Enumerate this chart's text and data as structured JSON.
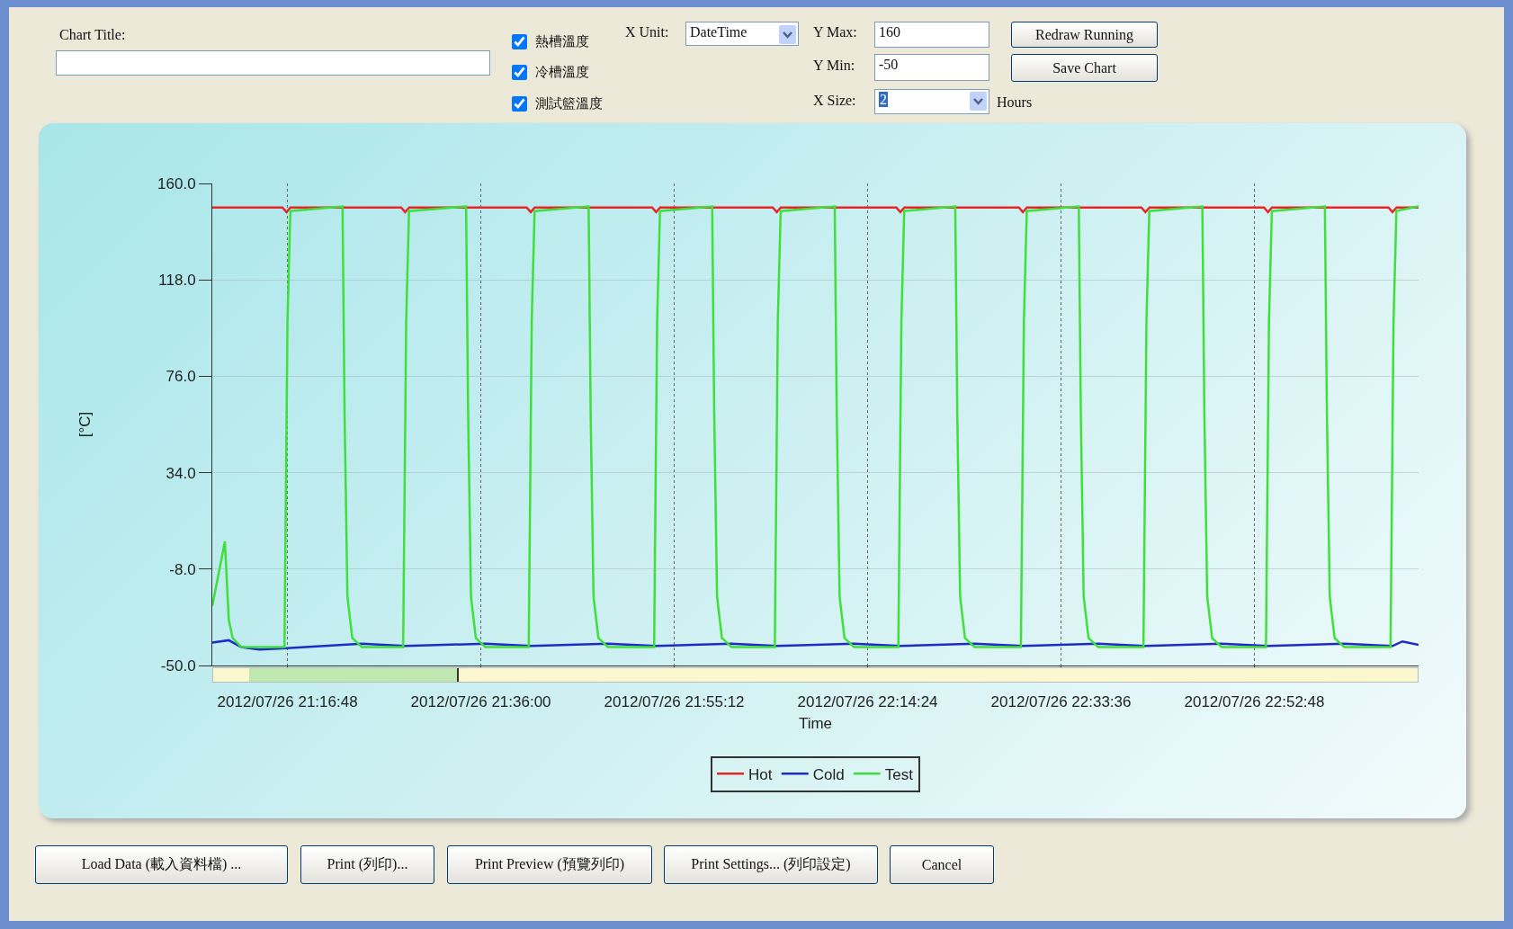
{
  "chart_data": {
    "type": "line",
    "xlabel": "Time",
    "ylabel": "[°C]",
    "legend": "bottom",
    "grid": true,
    "marker": "none",
    "line_style": "solid",
    "xlim": [
      "2012-07-26T21:09:20",
      "2012-07-26T23:09:06"
    ],
    "xticks": [
      {
        "value": "2012-07-26T21:16:48",
        "label": "2012/07/26 21:16:48"
      },
      {
        "value": "2012-07-26T21:36:00",
        "label": "2012/07/26 21:36:00"
      },
      {
        "value": "2012-07-26T21:55:12",
        "label": "2012/07/26 21:55:12"
      },
      {
        "value": "2012-07-26T22:14:24",
        "label": "2012/07/26 22:14:24"
      },
      {
        "value": "2012-07-26T22:33:36",
        "label": "2012/07/26 22:33:36"
      },
      {
        "value": "2012-07-26T22:52:48",
        "label": "2012/07/26 22:52:48"
      }
    ],
    "ylim": [
      -50,
      160
    ],
    "yticks": [
      {
        "value": 160,
        "label": "160.0"
      },
      {
        "value": 118,
        "label": "118.0"
      },
      {
        "value": 76,
        "label": "76.0"
      },
      {
        "value": 34,
        "label": "34.0"
      },
      {
        "value": -8,
        "label": "-8.0"
      },
      {
        "value": -50,
        "label": "-50.0"
      }
    ],
    "series": [
      {
        "name": "Hot",
        "color": "#e8262a",
        "x": [
          "2012-07-26T21:09:20",
          "2012-07-26T21:16:18",
          "2012-07-26T21:16:42",
          "2012-07-26T21:17:06",
          "2012-07-26T21:28:05",
          "2012-07-26T21:28:29",
          "2012-07-26T21:28:53",
          "2012-07-26T21:40:33",
          "2012-07-26T21:40:57",
          "2012-07-26T21:41:21",
          "2012-07-26T21:53:00",
          "2012-07-26T21:53:24",
          "2012-07-26T21:53:48",
          "2012-07-26T22:04:59",
          "2012-07-26T22:05:23",
          "2012-07-26T22:05:47",
          "2012-07-26T22:17:15",
          "2012-07-26T22:17:39",
          "2012-07-26T22:18:03",
          "2012-07-26T22:29:25",
          "2012-07-26T22:29:49",
          "2012-07-26T22:30:13",
          "2012-07-26T22:41:35",
          "2012-07-26T22:41:59",
          "2012-07-26T22:42:23",
          "2012-07-26T22:53:45",
          "2012-07-26T22:54:09",
          "2012-07-26T22:54:33",
          "2012-07-26T23:06:07",
          "2012-07-26T23:06:31",
          "2012-07-26T23:06:55",
          "2012-07-26T23:09:06"
        ],
        "values": [
          149.5,
          149.5,
          147.5,
          149.5,
          149.5,
          147.5,
          149.5,
          149.5,
          147.5,
          149.5,
          149.5,
          147.5,
          149.5,
          149.5,
          147.5,
          149.5,
          149.5,
          147.5,
          149.5,
          149.5,
          147.5,
          149.5,
          149.5,
          147.5,
          149.5,
          149.5,
          147.5,
          149.5,
          149.5,
          147.5,
          149.5,
          149.5
        ]
      },
      {
        "name": "Cold",
        "color": "#1d2bc8",
        "x": [
          "2012-07-26T21:09:20",
          "2012-07-26T21:10:58",
          "2012-07-26T21:12:13",
          "2012-07-26T21:14:00",
          "2012-07-26T21:16:42",
          "2012-07-26T21:24:11",
          "2012-07-26T21:28:29",
          "2012-07-26T21:36:27",
          "2012-07-26T21:40:57",
          "2012-07-26T21:48:37",
          "2012-07-26T21:53:24",
          "2012-07-26T22:00:53",
          "2012-07-26T22:05:23",
          "2012-07-26T22:13:03",
          "2012-07-26T22:17:39",
          "2012-07-26T22:25:01",
          "2012-07-26T22:29:49",
          "2012-07-26T22:37:17",
          "2012-07-26T22:41:59",
          "2012-07-26T22:49:33",
          "2012-07-26T22:54:09",
          "2012-07-26T23:01:43",
          "2012-07-26T23:06:31",
          "2012-07-26T23:07:30",
          "2012-07-26T23:09:06"
        ],
        "values": [
          -40,
          -39,
          -42,
          -43,
          -42.5,
          -40.5,
          -41.5,
          -40.5,
          -41.5,
          -40.5,
          -41.5,
          -40.5,
          -41.5,
          -40.5,
          -41.5,
          -40.5,
          -41.5,
          -40.5,
          -41.5,
          -40.5,
          -41.5,
          -40.5,
          -41.5,
          -39.5,
          -41
        ]
      },
      {
        "name": "Test",
        "color": "#3ee03a",
        "x": [
          "2012-07-26T21:09:20",
          "2012-07-26T21:10:35",
          "2012-07-26T21:10:58",
          "2012-07-26T21:11:21",
          "2012-07-26T21:12:13",
          "2012-07-26T21:16:30",
          "2012-07-26T21:16:48",
          "2012-07-26T21:17:05",
          "2012-07-26T21:22:16",
          "2012-07-26T21:22:28",
          "2012-07-26T21:22:45",
          "2012-07-26T21:23:14",
          "2012-07-26T21:24:11",
          "2012-07-26T21:28:17",
          "2012-07-26T21:28:35",
          "2012-07-26T21:28:52",
          "2012-07-26T21:34:32",
          "2012-07-26T21:34:44",
          "2012-07-26T21:35:01",
          "2012-07-26T21:35:30",
          "2012-07-26T21:36:27",
          "2012-07-26T21:40:45",
          "2012-07-26T21:41:03",
          "2012-07-26T21:41:20",
          "2012-07-26T21:46:42",
          "2012-07-26T21:46:54",
          "2012-07-26T21:47:11",
          "2012-07-26T21:47:40",
          "2012-07-26T21:48:37",
          "2012-07-26T21:53:12",
          "2012-07-26T21:53:30",
          "2012-07-26T21:53:47",
          "2012-07-26T21:58:58",
          "2012-07-26T21:59:10",
          "2012-07-26T21:59:27",
          "2012-07-26T21:59:56",
          "2012-07-26T22:00:53",
          "2012-07-26T22:05:11",
          "2012-07-26T22:05:29",
          "2012-07-26T22:05:46",
          "2012-07-26T22:11:08",
          "2012-07-26T22:11:20",
          "2012-07-26T22:11:37",
          "2012-07-26T22:12:06",
          "2012-07-26T22:13:03",
          "2012-07-26T22:17:27",
          "2012-07-26T22:17:45",
          "2012-07-26T22:18:02",
          "2012-07-26T22:23:06",
          "2012-07-26T22:23:18",
          "2012-07-26T22:23:35",
          "2012-07-26T22:24:04",
          "2012-07-26T22:25:01",
          "2012-07-26T22:29:37",
          "2012-07-26T22:29:55",
          "2012-07-26T22:30:12",
          "2012-07-26T22:35:22",
          "2012-07-26T22:35:34",
          "2012-07-26T22:35:51",
          "2012-07-26T22:36:20",
          "2012-07-26T22:37:17",
          "2012-07-26T22:41:47",
          "2012-07-26T22:42:05",
          "2012-07-26T22:42:22",
          "2012-07-26T22:47:38",
          "2012-07-26T22:47:50",
          "2012-07-26T22:48:07",
          "2012-07-26T22:48:36",
          "2012-07-26T22:49:33",
          "2012-07-26T22:53:57",
          "2012-07-26T22:54:15",
          "2012-07-26T22:54:32",
          "2012-07-26T22:59:48",
          "2012-07-26T23:00:00",
          "2012-07-26T23:00:17",
          "2012-07-26T23:00:46",
          "2012-07-26T23:01:43",
          "2012-07-26T23:06:19",
          "2012-07-26T23:06:37",
          "2012-07-26T23:06:54",
          "2012-07-26T23:09:06"
        ],
        "values": [
          -24,
          4,
          -30,
          -38,
          -42,
          -42,
          100,
          148,
          150,
          60,
          -20,
          -38,
          -42,
          -42,
          100,
          148,
          150,
          60,
          -20,
          -38,
          -42,
          -42,
          100,
          148,
          150,
          60,
          -20,
          -38,
          -42,
          -42,
          100,
          148,
          150,
          60,
          -20,
          -38,
          -42,
          -42,
          100,
          148,
          150,
          60,
          -20,
          -38,
          -42,
          -42,
          100,
          148,
          150,
          60,
          -20,
          -38,
          -42,
          -42,
          100,
          148,
          150,
          60,
          -20,
          -38,
          -42,
          -42,
          100,
          148,
          150,
          60,
          -20,
          -38,
          -42,
          -42,
          100,
          148,
          150,
          60,
          -20,
          -38,
          -42,
          -42,
          100,
          148,
          150
        ]
      }
    ],
    "annotations": [
      "Chart Title:",
      "熱槽溫度",
      "冷槽溫度",
      "測試籃溫度",
      "X Unit:",
      "DateTime",
      "Y Max:",
      "160",
      "Y Min:",
      "-50",
      "X Size:",
      "2",
      "Hours",
      "Redraw Running",
      "Save Chart",
      "Load Data (載入資料檔) ...",
      "Print (列印)...",
      "Print Preview (預覽列印)",
      "Print Settings... (列印設定)",
      "Cancel"
    ]
  }
}
